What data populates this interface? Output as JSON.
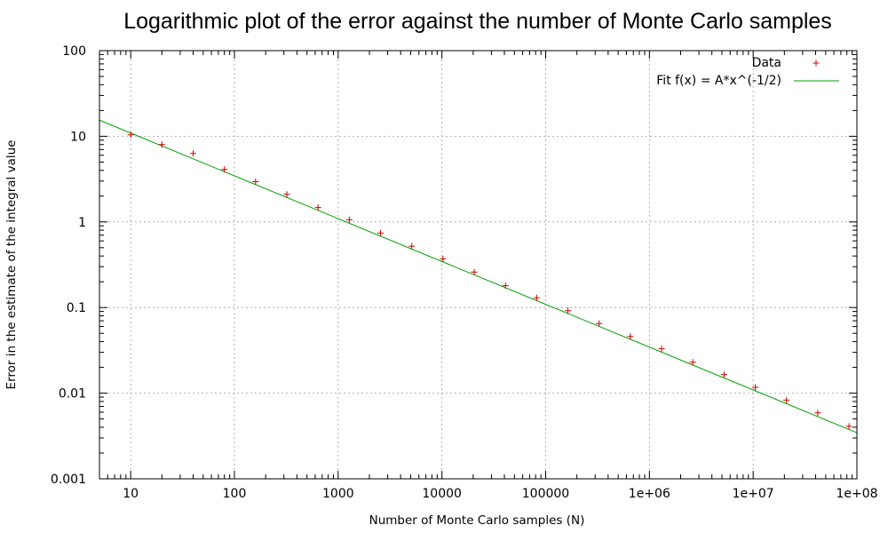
{
  "chart_data": {
    "type": "scatter",
    "title": "Logarithmic plot of the error against the number of Monte Carlo samples",
    "xlabel": "Number of Monte Carlo samples (N)",
    "ylabel": "Error in the estimate of the integral value",
    "xscale": "log",
    "yscale": "log",
    "xlim": [
      5,
      100000000
    ],
    "ylim": [
      0.001,
      100
    ],
    "grid": true,
    "legend_position": "top-right",
    "x_ticks": [
      10,
      100,
      1000,
      10000,
      100000,
      1000000,
      10000000,
      100000000
    ],
    "x_tick_labels": [
      "10",
      "100",
      "1000",
      "10000",
      "100000",
      "1e+06",
      "1e+07",
      "1e+08"
    ],
    "y_ticks": [
      0.001,
      0.01,
      0.1,
      1,
      10,
      100
    ],
    "y_tick_labels": [
      "0.001",
      "0.01",
      "0.1",
      "1",
      "10",
      "100"
    ],
    "series": [
      {
        "name": "Data",
        "kind": "points",
        "marker": "plus",
        "color": "#cc0000",
        "x": [
          10,
          20,
          40,
          80,
          160,
          320,
          640,
          1280,
          2560,
          5120,
          10240,
          20480,
          40960,
          81920,
          163840,
          327680,
          655360,
          1310720,
          2621440,
          5242880,
          10485760,
          20971520,
          41943040,
          83886080
        ],
        "y": [
          10.4,
          8.0,
          6.3,
          4.1,
          2.95,
          2.1,
          1.47,
          1.06,
          0.74,
          0.52,
          0.37,
          0.26,
          0.18,
          0.13,
          0.092,
          0.065,
          0.046,
          0.033,
          0.023,
          0.0165,
          0.0117,
          0.0083,
          0.0059,
          0.0041
        ]
      },
      {
        "name": "Fit  f(x) = A*x^(-1/2)",
        "kind": "line",
        "color": "#00a000",
        "A": 34.5,
        "exponent": -0.5
      }
    ]
  }
}
